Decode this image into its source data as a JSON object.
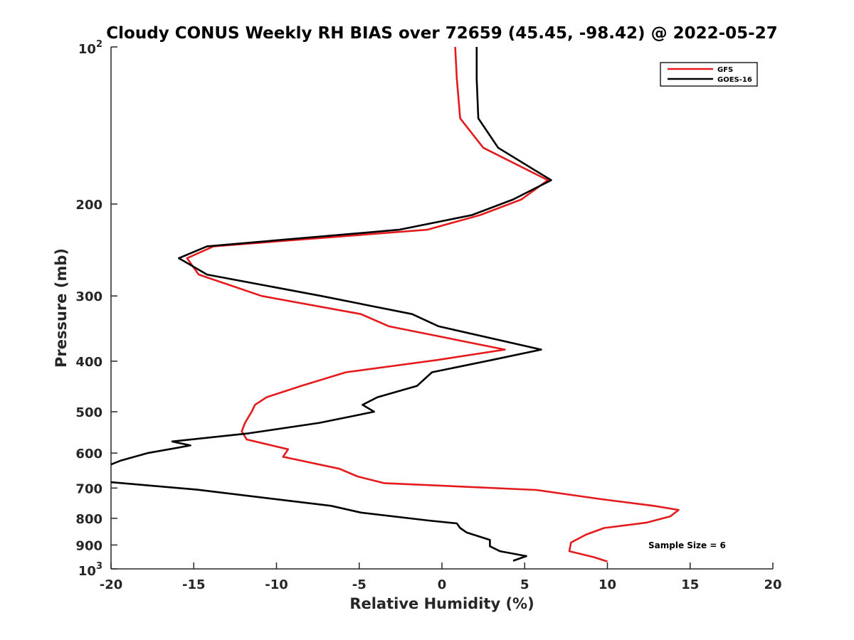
{
  "chart_data": {
    "type": "line",
    "title": "Cloudy CONUS Weekly RH BIAS over 72659 (45.45, -98.42) @ 2022-05-27",
    "xlabel": "Relative Humidity (%)",
    "ylabel": "Pressure (mb)",
    "xlim": [
      -20,
      20
    ],
    "ylim": [
      100,
      1000
    ],
    "yscale": "log",
    "y_reversed": true,
    "grid": false,
    "legend_position": "top-right",
    "x_ticks": [
      "-20",
      "-15",
      "-10",
      "-5",
      "0",
      "5",
      "10",
      "15",
      "20"
    ],
    "y_ticks": [
      {
        "value": 100,
        "base": "10",
        "exp": "2"
      },
      {
        "value": 200,
        "label": "200"
      },
      {
        "value": 300,
        "label": "300"
      },
      {
        "value": 400,
        "label": "400"
      },
      {
        "value": 500,
        "label": "500"
      },
      {
        "value": 600,
        "label": "600"
      },
      {
        "value": 700,
        "label": "700"
      },
      {
        "value": 800,
        "label": "800"
      },
      {
        "value": 900,
        "label": "900"
      },
      {
        "value": 1000,
        "base": "10",
        "exp": "3"
      }
    ],
    "annotation": "Sample Size = 6",
    "series": [
      {
        "name": "GFS",
        "color": "#e41a1c",
        "points": [
          [
            0.8,
            100
          ],
          [
            0.9,
            115
          ],
          [
            1.1,
            137
          ],
          [
            2.5,
            156
          ],
          [
            6.4,
            180
          ],
          [
            4.8,
            196
          ],
          [
            2.3,
            210
          ],
          [
            -0.9,
            224
          ],
          [
            -13.8,
            241
          ],
          [
            -15.4,
            254
          ],
          [
            -14.7,
            273
          ],
          [
            -10.9,
            300
          ],
          [
            -4.9,
            325
          ],
          [
            -3.2,
            343
          ],
          [
            3.8,
            380
          ],
          [
            -0.3,
            398
          ],
          [
            -5.8,
            420
          ],
          [
            -8.5,
            446
          ],
          [
            -10.6,
            469
          ],
          [
            -11.3,
            485
          ],
          [
            -11.5,
            500
          ],
          [
            -11.9,
            525
          ],
          [
            -12.1,
            545
          ],
          [
            -11.8,
            565
          ],
          [
            -9.3,
            590
          ],
          [
            -9.6,
            610
          ],
          [
            -6.2,
            643
          ],
          [
            -5.1,
            665
          ],
          [
            -3.5,
            685
          ],
          [
            5.7,
            706
          ],
          [
            9.6,
            735
          ],
          [
            12.8,
            757
          ],
          [
            14.3,
            771
          ],
          [
            13.8,
            793
          ],
          [
            12.4,
            815
          ],
          [
            9.8,
            835
          ],
          [
            8.7,
            860
          ],
          [
            7.8,
            890
          ],
          [
            7.7,
            925
          ],
          [
            9.2,
            950
          ],
          [
            10.0,
            968
          ]
        ]
      },
      {
        "name": "GOES-16",
        "color": "#000000",
        "points": [
          [
            2.1,
            100
          ],
          [
            2.1,
            115
          ],
          [
            2.2,
            137
          ],
          [
            3.4,
            156
          ],
          [
            6.6,
            180
          ],
          [
            4.3,
            196
          ],
          [
            1.8,
            210
          ],
          [
            -2.6,
            224
          ],
          [
            -14.2,
            241
          ],
          [
            -15.9,
            254
          ],
          [
            -14.2,
            273
          ],
          [
            -7.3,
            300
          ],
          [
            -1.8,
            325
          ],
          [
            -0.2,
            343
          ],
          [
            6.0,
            380
          ],
          [
            3.0,
            398
          ],
          [
            -0.6,
            420
          ],
          [
            -1.5,
            446
          ],
          [
            -3.9,
            469
          ],
          [
            -4.8,
            485
          ],
          [
            -4.1,
            500
          ],
          [
            -7.4,
            525
          ],
          [
            -11.7,
            550
          ],
          [
            -16.3,
            570
          ],
          [
            -15.2,
            580
          ],
          [
            -17.8,
            600
          ],
          [
            -19.4,
            620
          ],
          [
            -20.5,
            640
          ],
          [
            -20.5,
            680
          ],
          [
            -14.8,
            705
          ],
          [
            -6.7,
            757
          ],
          [
            -4.9,
            780
          ],
          [
            -0.8,
            808
          ],
          [
            0.9,
            818
          ],
          [
            1.1,
            835
          ],
          [
            1.5,
            852
          ],
          [
            2.9,
            880
          ],
          [
            2.9,
            905
          ],
          [
            3.5,
            925
          ],
          [
            5.1,
            945
          ],
          [
            4.3,
            965
          ]
        ]
      }
    ]
  }
}
